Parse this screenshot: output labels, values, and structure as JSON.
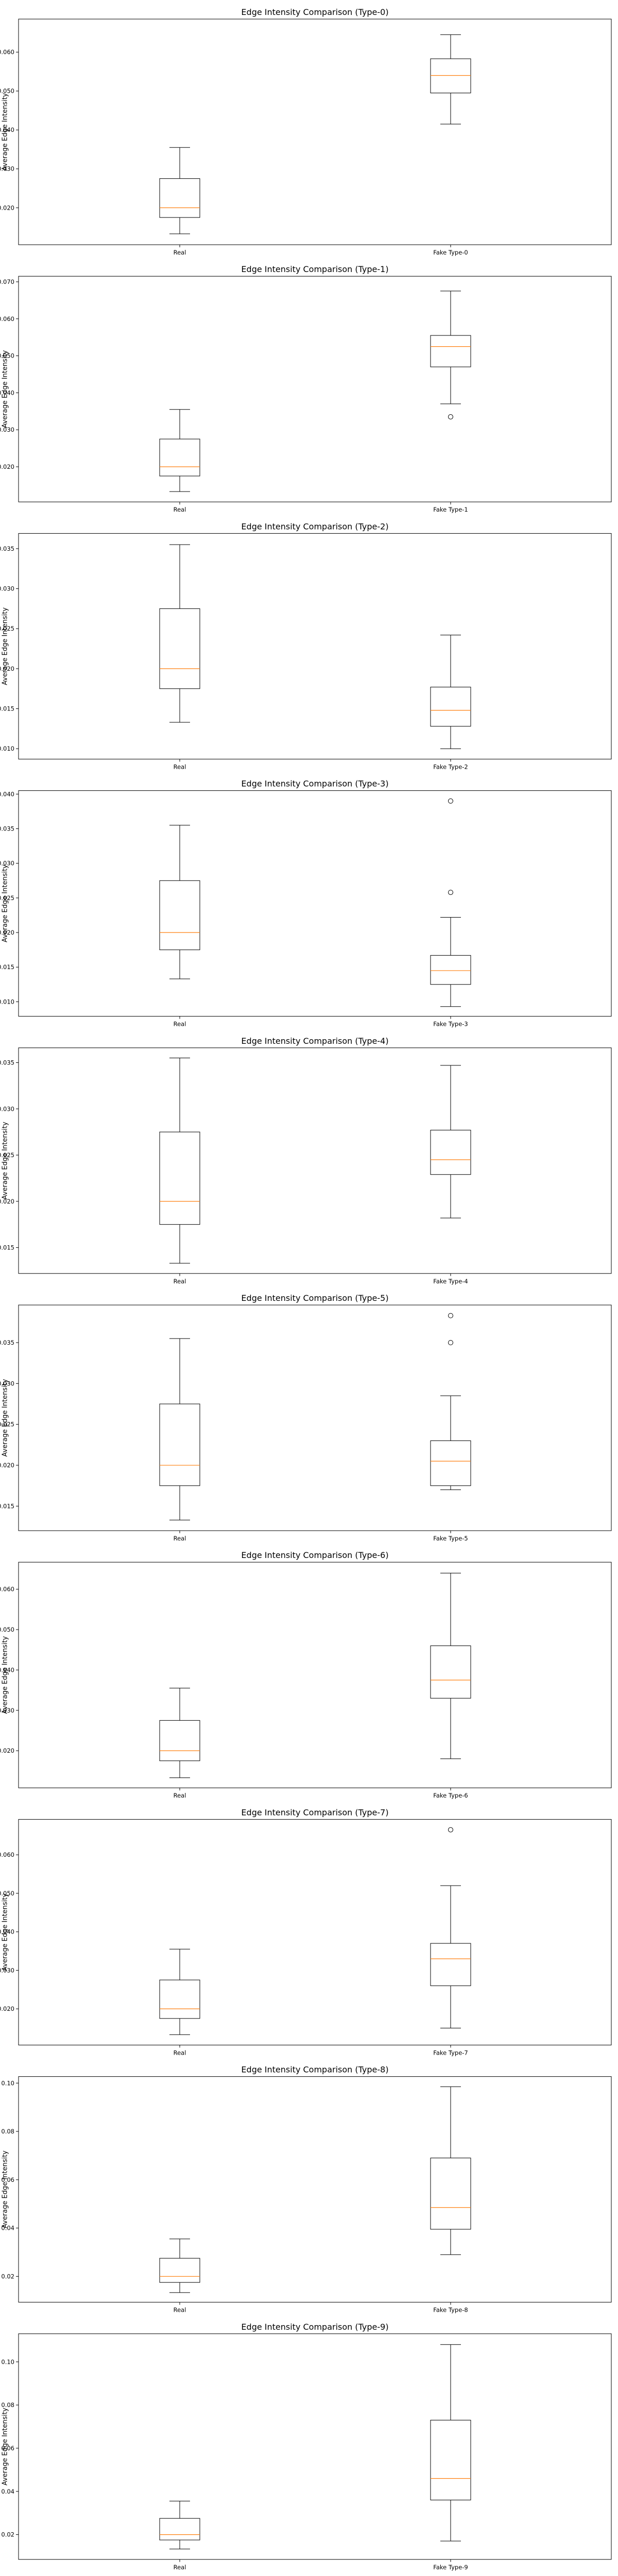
{
  "figure": {
    "panel_count": 10
  },
  "chart_data": [
    {
      "type": "box",
      "title": "Edge Intensity Comparison (Type-0)",
      "xlabel": "",
      "ylabel": "Average Edge Intensity",
      "ylim": [
        0.0105,
        0.0685
      ],
      "yticks": [
        0.02,
        0.03,
        0.04,
        0.05,
        0.06
      ],
      "categories": [
        "Real",
        "Fake Type-0"
      ],
      "boxes": [
        {
          "whislo": 0.0133,
          "q1": 0.0175,
          "med": 0.02,
          "q3": 0.0275,
          "whishi": 0.0355,
          "fliers": []
        },
        {
          "whislo": 0.0415,
          "q1": 0.0495,
          "med": 0.054,
          "q3": 0.0583,
          "whishi": 0.0645,
          "fliers": []
        }
      ],
      "colors": {
        "box": "#000000",
        "median": "#ff7f0e"
      }
    },
    {
      "type": "box",
      "title": "Edge Intensity Comparison (Type-1)",
      "xlabel": "",
      "ylabel": "Average Edge Intensity",
      "ylim": [
        0.0105,
        0.0715
      ],
      "yticks": [
        0.02,
        0.03,
        0.04,
        0.05,
        0.06,
        0.07
      ],
      "categories": [
        "Real",
        "Fake Type-1"
      ],
      "boxes": [
        {
          "whislo": 0.0133,
          "q1": 0.0175,
          "med": 0.02,
          "q3": 0.0275,
          "whishi": 0.0355,
          "fliers": []
        },
        {
          "whislo": 0.037,
          "q1": 0.047,
          "med": 0.0525,
          "q3": 0.0555,
          "whishi": 0.0675,
          "fliers": [
            0.0335
          ]
        }
      ],
      "colors": {
        "box": "#000000",
        "median": "#ff7f0e"
      }
    },
    {
      "type": "box",
      "title": "Edge Intensity Comparison (Type-2)",
      "xlabel": "",
      "ylabel": "Average Edge Intensity",
      "ylim": [
        0.0087,
        0.0369
      ],
      "yticks": [
        0.01,
        0.015,
        0.02,
        0.025,
        0.03,
        0.035
      ],
      "categories": [
        "Real",
        "Fake Type-2"
      ],
      "boxes": [
        {
          "whislo": 0.0133,
          "q1": 0.0175,
          "med": 0.02,
          "q3": 0.0275,
          "whishi": 0.0355,
          "fliers": []
        },
        {
          "whislo": 0.01,
          "q1": 0.0128,
          "med": 0.0148,
          "q3": 0.0177,
          "whishi": 0.0242,
          "fliers": []
        }
      ],
      "colors": {
        "box": "#000000",
        "median": "#ff7f0e"
      }
    },
    {
      "type": "box",
      "title": "Edge Intensity Comparison (Type-3)",
      "xlabel": "",
      "ylabel": "Average Edge Intensity",
      "ylim": [
        0.0079,
        0.0405
      ],
      "yticks": [
        0.01,
        0.015,
        0.02,
        0.025,
        0.03,
        0.035,
        0.04
      ],
      "categories": [
        "Real",
        "Fake Type-3"
      ],
      "boxes": [
        {
          "whislo": 0.0133,
          "q1": 0.0175,
          "med": 0.02,
          "q3": 0.0275,
          "whishi": 0.0355,
          "fliers": []
        },
        {
          "whislo": 0.0093,
          "q1": 0.0125,
          "med": 0.0145,
          "q3": 0.0167,
          "whishi": 0.0222,
          "fliers": [
            0.0258,
            0.039
          ]
        }
      ],
      "colors": {
        "box": "#000000",
        "median": "#ff7f0e"
      }
    },
    {
      "type": "box",
      "title": "Edge Intensity Comparison (Type-4)",
      "xlabel": "",
      "ylabel": "Average Edge Intensity",
      "ylim": [
        0.0122,
        0.0366
      ],
      "yticks": [
        0.015,
        0.02,
        0.025,
        0.03,
        0.035
      ],
      "categories": [
        "Real",
        "Fake Type-4"
      ],
      "boxes": [
        {
          "whislo": 0.0133,
          "q1": 0.0175,
          "med": 0.02,
          "q3": 0.0275,
          "whishi": 0.0355,
          "fliers": []
        },
        {
          "whislo": 0.0182,
          "q1": 0.0229,
          "med": 0.0245,
          "q3": 0.0277,
          "whishi": 0.0347,
          "fliers": []
        }
      ],
      "colors": {
        "box": "#000000",
        "median": "#ff7f0e"
      }
    },
    {
      "type": "box",
      "title": "Edge Intensity Comparison (Type-5)",
      "xlabel": "",
      "ylabel": "Average Edge Intensity",
      "ylim": [
        0.012,
        0.0396
      ],
      "yticks": [
        0.015,
        0.02,
        0.025,
        0.03,
        0.035
      ],
      "categories": [
        "Real",
        "Fake Type-5"
      ],
      "boxes": [
        {
          "whislo": 0.0133,
          "q1": 0.0175,
          "med": 0.02,
          "q3": 0.0275,
          "whishi": 0.0355,
          "fliers": []
        },
        {
          "whislo": 0.017,
          "q1": 0.0175,
          "med": 0.0205,
          "q3": 0.023,
          "whishi": 0.0285,
          "fliers": [
            0.035,
            0.0383
          ]
        }
      ],
      "colors": {
        "box": "#000000",
        "median": "#ff7f0e"
      }
    },
    {
      "type": "box",
      "title": "Edge Intensity Comparison (Type-6)",
      "xlabel": "",
      "ylabel": "Average Edge Intensity",
      "ylim": [
        0.0108,
        0.0667
      ],
      "yticks": [
        0.02,
        0.03,
        0.04,
        0.05,
        0.06
      ],
      "categories": [
        "Real",
        "Fake Type-6"
      ],
      "boxes": [
        {
          "whislo": 0.0133,
          "q1": 0.0175,
          "med": 0.02,
          "q3": 0.0275,
          "whishi": 0.0355,
          "fliers": []
        },
        {
          "whislo": 0.018,
          "q1": 0.033,
          "med": 0.0375,
          "q3": 0.046,
          "whishi": 0.064,
          "fliers": []
        }
      ],
      "colors": {
        "box": "#000000",
        "median": "#ff7f0e"
      }
    },
    {
      "type": "box",
      "title": "Edge Intensity Comparison (Type-7)",
      "xlabel": "",
      "ylabel": "Average Edge Intensity",
      "ylim": [
        0.0106,
        0.0692
      ],
      "yticks": [
        0.02,
        0.03,
        0.04,
        0.05,
        0.06
      ],
      "categories": [
        "Real",
        "Fake Type-7"
      ],
      "boxes": [
        {
          "whislo": 0.0133,
          "q1": 0.0175,
          "med": 0.02,
          "q3": 0.0275,
          "whishi": 0.0355,
          "fliers": []
        },
        {
          "whislo": 0.015,
          "q1": 0.026,
          "med": 0.033,
          "q3": 0.037,
          "whishi": 0.052,
          "fliers": [
            0.0665
          ]
        }
      ],
      "colors": {
        "box": "#000000",
        "median": "#ff7f0e"
      }
    },
    {
      "type": "box",
      "title": "Edge Intensity Comparison (Type-8)",
      "xlabel": "",
      "ylabel": "Average Edge Intensity",
      "ylim": [
        0.0093,
        0.1027
      ],
      "yticks": [
        0.02,
        0.04,
        0.06,
        0.08,
        0.1
      ],
      "categories": [
        "Real",
        "Fake Type-8"
      ],
      "boxes": [
        {
          "whislo": 0.0133,
          "q1": 0.0175,
          "med": 0.02,
          "q3": 0.0275,
          "whishi": 0.0355,
          "fliers": []
        },
        {
          "whislo": 0.029,
          "q1": 0.0395,
          "med": 0.0485,
          "q3": 0.069,
          "whishi": 0.0985,
          "fliers": []
        }
      ],
      "colors": {
        "box": "#000000",
        "median": "#ff7f0e"
      }
    },
    {
      "type": "box",
      "title": "Edge Intensity Comparison (Type-9)",
      "xlabel": "",
      "ylabel": "Average Edge Intensity",
      "ylim": [
        0.0085,
        0.113
      ],
      "yticks": [
        0.02,
        0.04,
        0.06,
        0.08,
        0.1
      ],
      "categories": [
        "Real",
        "Fake Type-9"
      ],
      "boxes": [
        {
          "whislo": 0.0133,
          "q1": 0.0175,
          "med": 0.02,
          "q3": 0.0275,
          "whishi": 0.0355,
          "fliers": []
        },
        {
          "whislo": 0.017,
          "q1": 0.036,
          "med": 0.046,
          "q3": 0.073,
          "whishi": 0.108,
          "fliers": []
        }
      ],
      "colors": {
        "box": "#000000",
        "median": "#ff7f0e"
      }
    }
  ]
}
